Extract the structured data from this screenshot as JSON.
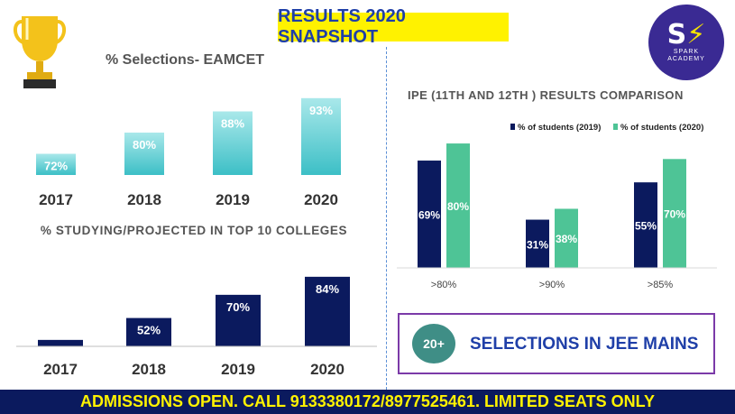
{
  "header": {
    "title": "RESULTS 2020 SNAPSHOT"
  },
  "logo": {
    "line1": "SPARK",
    "line2": "ACADEMY"
  },
  "jee": {
    "count": "20+",
    "text": "SELECTIONS IN JEE MAINS"
  },
  "footer": {
    "text": "ADMISSIONS OPEN. CALL 9133380172/8977525461. LIMITED SEATS ONLY"
  },
  "icons": {
    "trophy": "trophy-icon",
    "logo": "spark-academy-logo"
  },
  "colors": {
    "teal": "#3cbfc6",
    "teal_light": "#a9e8ea",
    "navy": "#0b1a5e",
    "green": "#4ec496",
    "title_bg": "#fff200",
    "title_text": "#1f3fa8",
    "purple_border": "#7b3aa8",
    "footer_bg": "#0b1a5e",
    "footer_text": "#fff200"
  },
  "chart_data": [
    {
      "type": "bar",
      "title": "% Selections- EAMCET",
      "categories": [
        "2017",
        "2018",
        "2019",
        "2020"
      ],
      "values": [
        72,
        80,
        88,
        93
      ],
      "labels": [
        "72%",
        "80%",
        "88%",
        "93%"
      ],
      "ylim": [
        64,
        96
      ]
    },
    {
      "type": "bar",
      "title": "% STUDYING/PROJECTED IN TOP 10 COLLEGES",
      "categories": [
        "2017",
        "2018",
        "2019",
        "2020"
      ],
      "values": [
        35,
        52,
        70,
        84
      ],
      "labels": [
        "35%",
        "52%",
        "70%",
        "84%"
      ],
      "ylim": [
        30,
        86
      ]
    },
    {
      "type": "bar",
      "title": "IPE (11TH AND 12TH ) RESULTS COMPARISON",
      "categories": [
        ">80%",
        ">90%",
        ">85%"
      ],
      "series": [
        {
          "name": "% of students (2019)",
          "values": [
            69,
            31,
            55
          ],
          "labels": [
            "69%",
            "31%",
            "55%"
          ]
        },
        {
          "name": "% of students (2020)",
          "values": [
            80,
            38,
            70
          ],
          "labels": [
            "80%",
            "38%",
            "70%"
          ]
        }
      ],
      "ylim": [
        0,
        87
      ],
      "legend": "top-right"
    }
  ]
}
